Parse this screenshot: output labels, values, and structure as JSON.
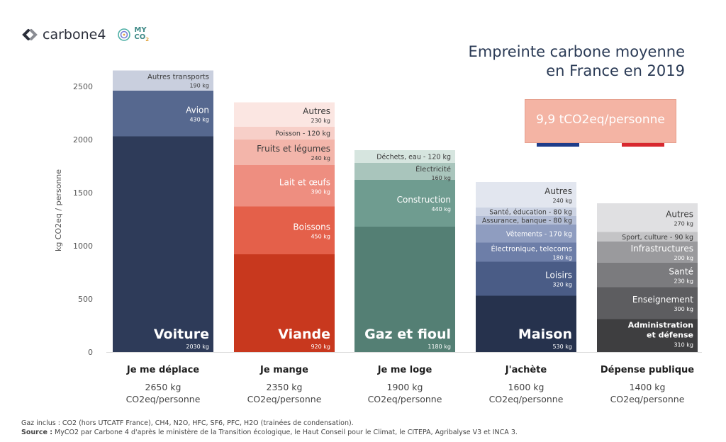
{
  "logos": {
    "carbone4": "carbone4",
    "myco2_top": "MY",
    "myco2_bottom": "CO",
    "myco2_sub": "2"
  },
  "title_line1": "Empreinte carbone moyenne",
  "title_line2": "en France en 2019",
  "badge": "9,9 tCO2eq/personne",
  "flag_colors": [
    "#1f3d8a",
    "#ffffff",
    "#d8282f"
  ],
  "footer": {
    "gas_line": "Gaz inclus : CO2 (hors UTCATF France), CH4, N2O, HFC, SF6, PFC, H2O (trainées de condensation).",
    "source_label": "Source :",
    "source_text": " MyCO2 par Carbone 4 d'après le ministère de la Transition écologique, le Haut Conseil pour le Climat, le CITEPA, Agribalyse V3 et INCA 3."
  },
  "chart_data": {
    "type": "bar",
    "stacked": true,
    "ylabel": "kg CO2eq / personne",
    "yticks": [
      0,
      500,
      1000,
      1500,
      2000,
      2500
    ],
    "ylim": [
      0,
      2700
    ],
    "grid": false,
    "categories": [
      {
        "name": "Je me déplace",
        "total_line1": "2650 kg",
        "total_line2": "CO2eq/personne",
        "segments": [
          {
            "label": "Voiture",
            "value": 2030,
            "value_label": "2030 kg",
            "color": "#2e3b59",
            "big": true
          },
          {
            "label": "Avion",
            "value": 430,
            "value_label": "430 kg",
            "color": "#56688f",
            "big": false
          },
          {
            "label": "Autres transports",
            "value": 190,
            "value_label": "190 kg",
            "color": "#c9cfde",
            "big": false,
            "dark": true
          }
        ]
      },
      {
        "name": "Je mange",
        "total_line1": "2350 kg",
        "total_line2": "CO2eq/personne",
        "segments": [
          {
            "label": "Viande",
            "value": 920,
            "value_label": "920 kg",
            "color": "#c8381e",
            "big": true
          },
          {
            "label": "Boissons",
            "value": 450,
            "value_label": "450 kg",
            "color": "#e4604a",
            "big": false
          },
          {
            "label": "Lait et œufs",
            "value": 390,
            "value_label": "390 kg",
            "color": "#ee8e80",
            "big": false
          },
          {
            "label": "Fruits et légumes",
            "value": 240,
            "value_label": "240 kg",
            "color": "#f3b5aa",
            "big": false,
            "dark": true
          },
          {
            "label": "Poisson",
            "value": 120,
            "value_label": "120 kg",
            "color": "#f7cfc8",
            "big": false,
            "dark": true,
            "inline": true
          },
          {
            "label": "Autres",
            "value": 230,
            "value_label": "230 kg",
            "color": "#fbe6e2",
            "big": false,
            "dark": true
          }
        ]
      },
      {
        "name": "Je me loge",
        "total_line1": "1900 kg",
        "total_line2": "CO2eq/personne",
        "segments": [
          {
            "label": "Gaz et fioul",
            "value": 1180,
            "value_label": "1180 kg",
            "color": "#547f74",
            "big": true
          },
          {
            "label": "Construction",
            "value": 440,
            "value_label": "440 kg",
            "color": "#6f9c90",
            "big": false
          },
          {
            "label": "Électricité",
            "value": 160,
            "value_label": "160 kg",
            "color": "#a9c5bc",
            "big": false,
            "dark": true
          },
          {
            "label": "Déchets, eau",
            "value": 120,
            "value_label": "120 kg",
            "color": "#d6e5df",
            "big": false,
            "dark": true,
            "inline": true
          }
        ]
      },
      {
        "name": "J'achète",
        "total_line1": "1600 kg",
        "total_line2": "CO2eq/personne",
        "segments": [
          {
            "label": "Maison",
            "value": 530,
            "value_label": "530 kg",
            "color": "#26324d",
            "big": true
          },
          {
            "label": "Loisirs",
            "value": 320,
            "value_label": "320 kg",
            "color": "#4a5c86",
            "big": false
          },
          {
            "label": "Électronique, telecoms",
            "value": 180,
            "value_label": "180 kg",
            "color": "#6d7ea8",
            "big": false
          },
          {
            "label": "Vêtements",
            "value": 170,
            "value_label": "170 kg",
            "color": "#8f9dc0",
            "big": false,
            "inline": true
          },
          {
            "label": "Assurance, banque",
            "value": 80,
            "value_label": "80 kg",
            "color": "#b3bdd5",
            "big": false,
            "dark": true,
            "inline": true
          },
          {
            "label": "Santé, éducation",
            "value": 80,
            "value_label": "80 kg",
            "color": "#ccd3e3",
            "big": false,
            "dark": true,
            "inline": true
          },
          {
            "label": "Autres",
            "value": 240,
            "value_label": "240 kg",
            "color": "#e2e6ef",
            "big": false,
            "dark": true
          }
        ]
      },
      {
        "name": "Dépense publique",
        "total_line1": "1400 kg",
        "total_line2": "CO2eq/personne",
        "segments": [
          {
            "label": "Administration et défense",
            "label_lines": [
              "Administration",
              "et défense"
            ],
            "value": 310,
            "value_label": "310 kg",
            "color": "#3e3e40",
            "big": false
          },
          {
            "label": "Enseignement",
            "value": 300,
            "value_label": "300 kg",
            "color": "#5d5d60",
            "big": false
          },
          {
            "label": "Santé",
            "value": 230,
            "value_label": "230 kg",
            "color": "#7b7b7e",
            "big": false
          },
          {
            "label": "Infrastructures",
            "value": 200,
            "value_label": "200 kg",
            "color": "#9a9a9d",
            "big": false
          },
          {
            "label": "Sport, culture",
            "value": 90,
            "value_label": "90 kg",
            "color": "#c4c4c6",
            "big": false,
            "dark": true,
            "inline": true
          },
          {
            "label": "Autres",
            "value": 270,
            "value_label": "270 kg",
            "color": "#e0e0e2",
            "big": false,
            "dark": true
          }
        ]
      }
    ]
  }
}
